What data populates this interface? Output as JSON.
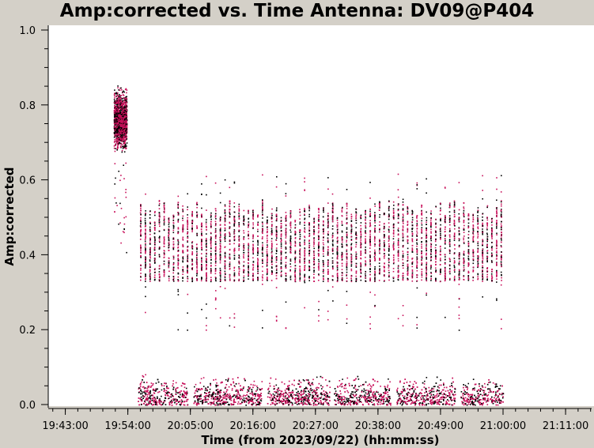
{
  "chart_data": {
    "type": "scatter",
    "title": "Amp:corrected vs. Time Antenna: DV09@P404",
    "xlabel": "Time (from 2023/09/22) (hh:mm:ss)",
    "ylabel": "Amp:corrected",
    "x_ticks": [
      "19:43:00",
      "19:54:00",
      "20:05:00",
      "20:16:00",
      "20:27:00",
      "20:38:00",
      "20:49:00",
      "21:00:00",
      "21:11:00"
    ],
    "y_ticks": [
      "0.0",
      "0.2",
      "0.4",
      "0.6",
      "0.8",
      "1.0"
    ],
    "xlim": [
      "19:40:00",
      "21:16:00"
    ],
    "ylim": [
      0,
      1.0
    ],
    "grid": false,
    "colors": {
      "primary": "#c8105a",
      "secondary": "#000000",
      "background": "#ffffff"
    },
    "series": [
      {
        "color": "#c8105a",
        "segments": [
          {
            "start": "19:51:30",
            "end": "19:53:45",
            "low": 0.62,
            "high": 0.88,
            "outlier_low": 0.4
          },
          {
            "start": "19:55:45",
            "end": "21:00:00",
            "band_low": 0.33,
            "band_high": 0.55,
            "spike_high": 0.63
          },
          {
            "start": "19:55:45",
            "end": "21:00:00",
            "band_low": 0.0,
            "band_high": 0.13
          }
        ]
      }
    ]
  }
}
